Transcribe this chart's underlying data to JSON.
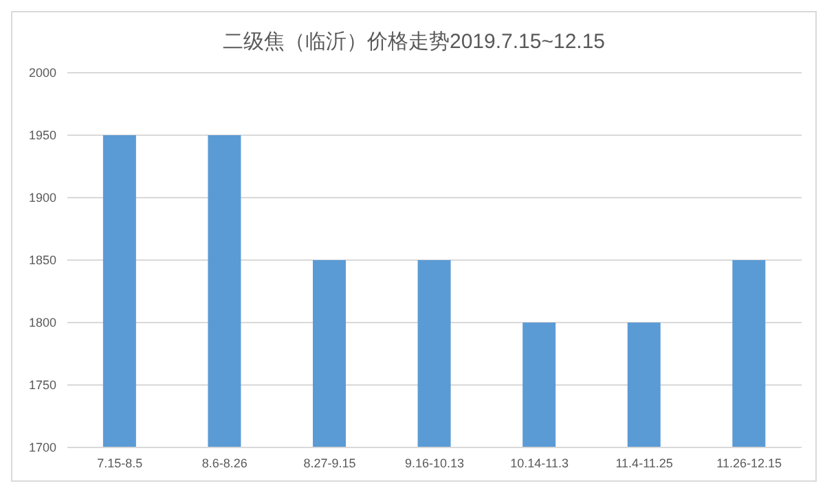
{
  "chart_data": {
    "type": "bar",
    "title": "二级焦（临沂）价格走势2019.7.15~12.15",
    "categories": [
      "7.15-8.5",
      "8.6-8.26",
      "8.27-9.15",
      "9.16-10.13",
      "10.14-11.3",
      "11.4-11.25",
      "11.26-12.15"
    ],
    "values": [
      1950,
      1950,
      1850,
      1850,
      1800,
      1800,
      1850
    ],
    "color": "#5b9bd5",
    "ylim": [
      1700,
      2000
    ],
    "yticks": [
      1700,
      1750,
      1800,
      1850,
      1900,
      1950,
      2000
    ],
    "grid": "y"
  }
}
